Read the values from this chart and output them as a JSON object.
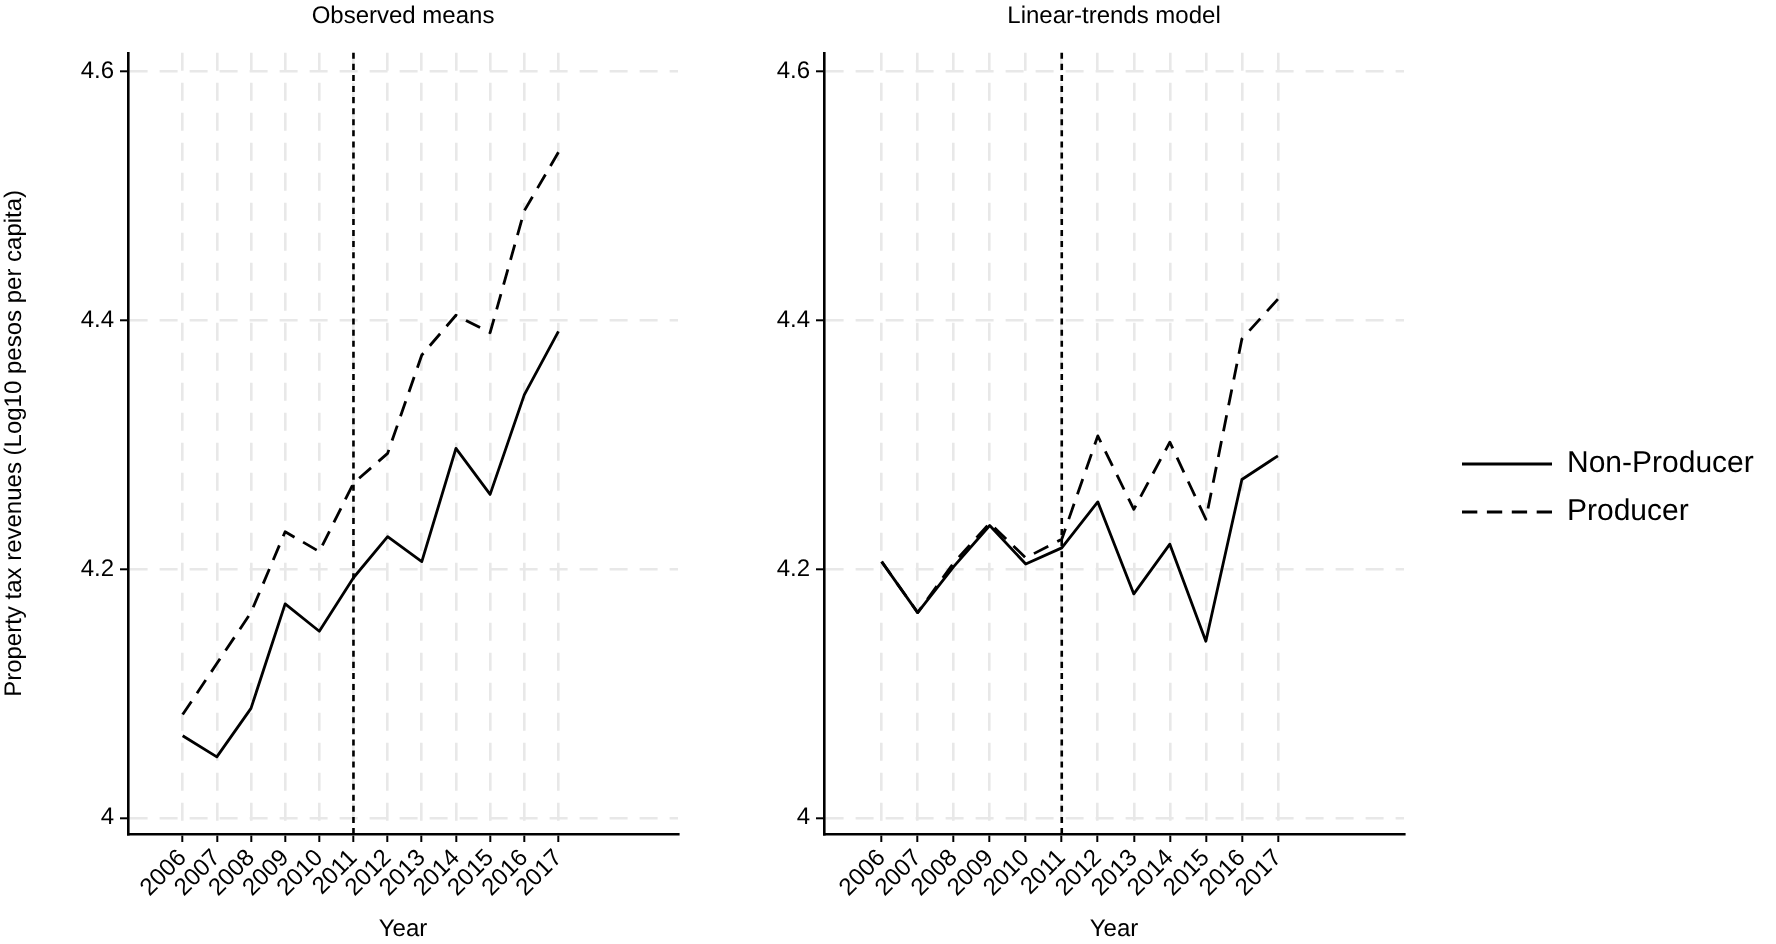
{
  "chart_data": [
    {
      "type": "line",
      "title": "Observed means",
      "xlabel": "Year",
      "ylabel": "Property tax revenues (Log10 pesos per capita)",
      "x": [
        2006,
        2007,
        2008,
        2009,
        2010,
        2011,
        2012,
        2013,
        2014,
        2015,
        2016,
        2017
      ],
      "series": [
        {
          "color": "#000000",
          "line_style": "solid",
          "values": [
            4.066,
            4.049,
            4.088,
            4.172,
            4.15,
            4.193,
            4.226,
            4.206,
            4.297,
            4.26,
            4.34,
            4.391
          ]
        },
        {
          "color": "#000000",
          "line_style": "dashed",
          "values": [
            4.083,
            4.124,
            4.165,
            4.23,
            4.214,
            4.269,
            4.293,
            4.372,
            4.404,
            4.39,
            4.488,
            4.535
          ]
        }
      ],
      "xlim": [
        2004.4,
        2020.5
      ],
      "xticks": [
        2006,
        2007,
        2008,
        2009,
        2010,
        2011,
        2012,
        2013,
        2014,
        2015,
        2016,
        2017
      ],
      "ylim": [
        3.987,
        4.615
      ],
      "yticks": [
        4,
        4.2,
        4.4,
        4.6
      ],
      "grid": true,
      "marker": "none",
      "ref_lines": [
        {
          "axis": "x",
          "value": 2011,
          "color": "#000000",
          "line_style": "dotted"
        }
      ]
    },
    {
      "type": "line",
      "title": "Linear-trends model",
      "xlabel": "Year",
      "x": [
        2006,
        2007,
        2008,
        2009,
        2010,
        2011,
        2012,
        2013,
        2014,
        2015,
        2016,
        2017
      ],
      "series": [
        {
          "name": "Non-Producer",
          "color": "#000000",
          "line_style": "solid",
          "values": [
            4.206,
            4.165,
            4.202,
            4.235,
            4.204,
            4.217,
            4.254,
            4.18,
            4.22,
            4.142,
            4.272,
            4.291
          ]
        },
        {
          "name": "Producer",
          "color": "#000000",
          "line_style": "dashed",
          "values": [
            4.206,
            4.165,
            4.205,
            4.237,
            4.209,
            4.224,
            4.307,
            4.248,
            4.302,
            4.24,
            4.385,
            4.417
          ]
        }
      ],
      "xlim": [
        2004.4,
        2020.5
      ],
      "xticks": [
        2006,
        2007,
        2008,
        2009,
        2010,
        2011,
        2012,
        2013,
        2014,
        2015,
        2016,
        2017
      ],
      "ylim": [
        3.987,
        4.615
      ],
      "yticks": [
        4,
        4.2,
        4.4,
        4.6
      ],
      "grid": true,
      "marker": "none",
      "legend": "right",
      "ref_lines": [
        {
          "axis": "x",
          "value": 2011,
          "color": "#000000",
          "line_style": "dotted"
        }
      ]
    }
  ]
}
